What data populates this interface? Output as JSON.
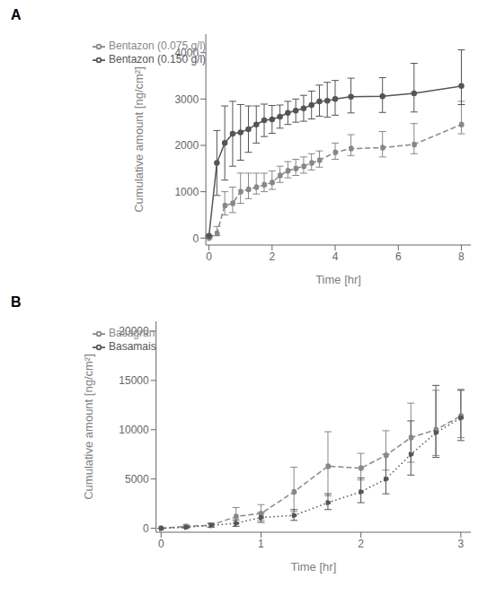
{
  "chart_data": [
    {
      "type": "line",
      "title": "A",
      "x_label": "Time [hr]",
      "y_label": "Cumulative amount [ng/cm²]",
      "xlim": [
        -0.1,
        8.3
      ],
      "ylim": [
        -150,
        4400
      ],
      "xticks": [
        0,
        2,
        4,
        6,
        8
      ],
      "yticks": [
        0,
        1000,
        2000,
        3000,
        4000
      ],
      "grid": false,
      "legend": "upper left",
      "series": [
        {
          "name": "Bentazon (0.075 g/l)",
          "line_style": "dashed",
          "color": "#888888",
          "marker": "circle",
          "x": [
            0,
            0.25,
            0.5,
            0.75,
            1.0,
            1.25,
            1.5,
            1.75,
            2.0,
            2.25,
            2.5,
            2.75,
            3.0,
            3.25,
            3.5,
            4.0,
            4.5,
            5.5,
            6.5,
            8.0
          ],
          "values": [
            0,
            100,
            700,
            750,
            1000,
            1050,
            1100,
            1150,
            1200,
            1350,
            1450,
            1500,
            1550,
            1620,
            1680,
            1850,
            1930,
            1950,
            2020,
            2450
          ],
          "yerr_lo": [
            0,
            50,
            200,
            200,
            250,
            200,
            150,
            150,
            150,
            150,
            150,
            150,
            150,
            150,
            150,
            150,
            150,
            200,
            200,
            200
          ],
          "yerr_hi": [
            0,
            150,
            300,
            350,
            400,
            350,
            300,
            250,
            250,
            200,
            200,
            200,
            200,
            200,
            200,
            200,
            300,
            350,
            450,
            500
          ]
        },
        {
          "name": "Bentazon (0.150 g/l)",
          "line_style": "solid",
          "color": "#555555",
          "marker": "circle",
          "x": [
            0,
            0.25,
            0.5,
            0.75,
            1.0,
            1.25,
            1.5,
            1.75,
            2.0,
            2.25,
            2.5,
            2.75,
            3.0,
            3.25,
            3.5,
            3.75,
            4.0,
            4.5,
            5.5,
            6.5,
            8.0
          ],
          "values": [
            50,
            1620,
            2050,
            2250,
            2280,
            2350,
            2450,
            2540,
            2560,
            2620,
            2700,
            2750,
            2800,
            2870,
            2950,
            2960,
            3000,
            3050,
            3060,
            3120,
            3280
          ],
          "yerr_lo": [
            0,
            700,
            800,
            700,
            600,
            500,
            400,
            350,
            300,
            250,
            250,
            250,
            280,
            300,
            320,
            350,
            350,
            350,
            350,
            400,
            400
          ],
          "yerr_hi": [
            0,
            700,
            800,
            700,
            600,
            500,
            400,
            350,
            300,
            250,
            250,
            250,
            280,
            300,
            350,
            400,
            400,
            400,
            400,
            650,
            780
          ]
        }
      ]
    },
    {
      "type": "line",
      "title": "B",
      "x_label": "Time [hr]",
      "y_label": "Cumulative amount [ng/cm²]",
      "xlim": [
        -0.05,
        3.1
      ],
      "ylim": [
        -400,
        21000
      ],
      "xticks": [
        0,
        1,
        2,
        3
      ],
      "yticks": [
        0,
        5000,
        10000,
        15000,
        20000
      ],
      "grid": false,
      "legend": "upper left",
      "series": [
        {
          "name": "Basagran",
          "line_style": "dashed",
          "color": "#888888",
          "marker": "circle",
          "x": [
            0,
            0.25,
            0.5,
            0.75,
            1.0,
            1.33,
            1.67,
            2.0,
            2.25,
            2.5,
            2.75,
            3.0
          ],
          "values": [
            0,
            200,
            300,
            1200,
            1500,
            3700,
            6300,
            6100,
            7400,
            9200,
            10000,
            11400
          ],
          "yerr_lo": [
            0,
            150,
            200,
            700,
            700,
            2000,
            3000,
            1200,
            1500,
            2500,
            2600,
            2200
          ],
          "yerr_hi": [
            0,
            150,
            200,
            900,
            900,
            2500,
            3500,
            1500,
            2500,
            3500,
            4000,
            2700
          ]
        },
        {
          "name": "Basamais",
          "line_style": "dotted",
          "color": "#555555",
          "marker": "circle",
          "x": [
            0,
            0.25,
            0.5,
            0.75,
            1.0,
            1.33,
            1.67,
            2.0,
            2.25,
            2.5,
            2.75,
            3.0
          ],
          "values": [
            0,
            100,
            300,
            500,
            1100,
            1300,
            2600,
            3700,
            5000,
            7500,
            9700,
            11200
          ],
          "yerr_lo": [
            0,
            50,
            200,
            300,
            500,
            500,
            700,
            1100,
            1500,
            2100,
            2500,
            2300
          ],
          "yerr_hi": [
            0,
            50,
            200,
            350,
            500,
            600,
            900,
            1400,
            2500,
            3400,
            4800,
            2800
          ]
        }
      ]
    }
  ]
}
